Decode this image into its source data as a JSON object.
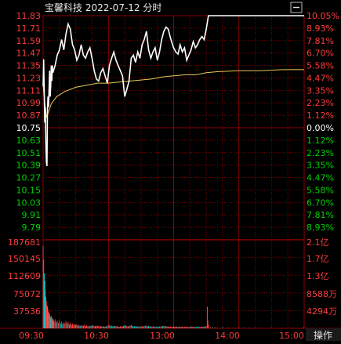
{
  "header": {
    "title": "宝馨科技  2022-07-12 分时"
  },
  "colors": {
    "background": "#000000",
    "grid": "#8b0000",
    "up": "#ff3b3b",
    "down": "#00d200",
    "neutral": "#ffffff",
    "price_line": "#ffffff",
    "avg_line": "#e8c75a",
    "volume_down": "#00d2d2"
  },
  "chart_data": {
    "type": "line",
    "prev_close": 10.75,
    "y_ticks": [
      "11.83",
      "11.71",
      "11.59",
      "11.47",
      "11.35",
      "11.23",
      "11.11",
      "10.99",
      "10.87",
      "10.75",
      "10.63",
      "10.51",
      "10.39",
      "10.27",
      "10.15",
      "10.03",
      "9.91",
      "9.79"
    ],
    "pct_ticks": [
      "10.05%",
      "8.93%",
      "7.81%",
      "6.70%",
      "5.58%",
      "4.47%",
      "3.35%",
      "2.23%",
      "1.12%",
      "0.00%",
      "1.12%",
      "2.23%",
      "3.35%",
      "4.47%",
      "5.58%",
      "6.70%",
      "7.81%",
      "8.93%"
    ],
    "volume_ticks": [
      "187681",
      "150145",
      "112609",
      "75072",
      "37536"
    ],
    "amount_ticks": [
      "2.1亿",
      "1.7亿",
      "1.3亿",
      "8588万",
      "4294万"
    ],
    "x_ticks": [
      "09:30",
      "10:30",
      "13:00",
      "14:00",
      "15:00"
    ],
    "ylim": [
      9.67,
      11.83
    ],
    "price_series": [
      [
        0,
        11.15
      ],
      [
        1,
        11.41
      ],
      [
        2,
        11.1
      ],
      [
        3,
        10.8
      ],
      [
        4,
        10.95
      ],
      [
        5,
        10.6
      ],
      [
        6,
        10.42
      ],
      [
        7,
        10.38
      ],
      [
        8,
        10.9
      ],
      [
        9,
        11.05
      ],
      [
        10,
        10.95
      ],
      [
        11,
        11.12
      ],
      [
        12,
        11.3
      ],
      [
        13,
        11.05
      ],
      [
        14,
        11.15
      ],
      [
        15,
        11.35
      ],
      [
        16,
        11.2
      ],
      [
        17,
        11.35
      ],
      [
        18,
        11.28
      ],
      [
        22,
        11.35
      ],
      [
        26,
        11.45
      ],
      [
        30,
        11.5
      ],
      [
        34,
        11.6
      ],
      [
        38,
        11.5
      ],
      [
        42,
        11.65
      ],
      [
        46,
        11.75
      ],
      [
        50,
        11.7
      ],
      [
        54,
        11.55
      ],
      [
        58,
        11.5
      ],
      [
        62,
        11.4
      ],
      [
        66,
        11.45
      ],
      [
        70,
        11.55
      ],
      [
        74,
        11.45
      ],
      [
        78,
        11.42
      ],
      [
        82,
        11.48
      ],
      [
        86,
        11.52
      ],
      [
        90,
        11.42
      ],
      [
        94,
        11.3
      ],
      [
        98,
        11.22
      ],
      [
        102,
        11.2
      ],
      [
        106,
        11.28
      ],
      [
        110,
        11.32
      ],
      [
        114,
        11.25
      ],
      [
        118,
        11.18
      ],
      [
        122,
        11.35
      ],
      [
        126,
        11.42
      ],
      [
        130,
        11.48
      ],
      [
        134,
        11.4
      ],
      [
        138,
        11.35
      ],
      [
        142,
        11.3
      ],
      [
        146,
        11.25
      ],
      [
        150,
        11.05
      ],
      [
        154,
        11.12
      ],
      [
        158,
        11.2
      ],
      [
        162,
        11.42
      ],
      [
        166,
        11.45
      ],
      [
        170,
        11.38
      ],
      [
        174,
        11.48
      ],
      [
        178,
        11.42
      ],
      [
        182,
        11.55
      ],
      [
        186,
        11.6
      ],
      [
        190,
        11.68
      ],
      [
        194,
        11.5
      ],
      [
        198,
        11.42
      ],
      [
        202,
        11.48
      ],
      [
        206,
        11.52
      ],
      [
        210,
        11.4
      ],
      [
        214,
        11.48
      ],
      [
        218,
        11.6
      ],
      [
        222,
        11.68
      ],
      [
        226,
        11.72
      ],
      [
        230,
        11.7
      ],
      [
        234,
        11.62
      ],
      [
        238,
        11.55
      ],
      [
        240,
        11.52
      ],
      [
        244,
        11.48
      ],
      [
        248,
        11.46
      ],
      [
        252,
        11.55
      ],
      [
        256,
        11.48
      ],
      [
        260,
        11.52
      ],
      [
        264,
        11.4
      ],
      [
        268,
        11.45
      ],
      [
        272,
        11.5
      ],
      [
        276,
        11.58
      ],
      [
        280,
        11.52
      ],
      [
        284,
        11.55
      ],
      [
        288,
        11.6
      ],
      [
        292,
        11.63
      ],
      [
        296,
        11.6
      ],
      [
        300,
        11.7
      ],
      [
        304,
        11.83
      ],
      [
        320,
        11.83
      ],
      [
        340,
        11.83
      ],
      [
        360,
        11.83
      ],
      [
        380,
        11.83
      ],
      [
        400,
        11.83
      ],
      [
        420,
        11.83
      ],
      [
        440,
        11.83
      ],
      [
        460,
        11.83
      ],
      [
        480,
        11.83
      ]
    ],
    "avg_series": [
      [
        0,
        11.15
      ],
      [
        3,
        11.0
      ],
      [
        6,
        10.85
      ],
      [
        10,
        10.9
      ],
      [
        15,
        10.98
      ],
      [
        25,
        11.05
      ],
      [
        40,
        11.1
      ],
      [
        60,
        11.14
      ],
      [
        80,
        11.16
      ],
      [
        100,
        11.18
      ],
      [
        120,
        11.18
      ],
      [
        140,
        11.19
      ],
      [
        160,
        11.2
      ],
      [
        180,
        11.21
      ],
      [
        200,
        11.22
      ],
      [
        220,
        11.24
      ],
      [
        240,
        11.25
      ],
      [
        260,
        11.26
      ],
      [
        280,
        11.26
      ],
      [
        300,
        11.28
      ],
      [
        320,
        11.29
      ],
      [
        360,
        11.3
      ],
      [
        400,
        11.3
      ],
      [
        440,
        11.31
      ],
      [
        480,
        11.31
      ]
    ],
    "volume_max": 225000,
    "volume_series": [
      [
        0,
        210000,
        "up"
      ],
      [
        1,
        175000,
        "up"
      ],
      [
        2,
        140000,
        "down"
      ],
      [
        3,
        120000,
        "down"
      ],
      [
        4,
        95000,
        "up"
      ],
      [
        5,
        80000,
        "down"
      ],
      [
        6,
        70000,
        "up"
      ],
      [
        7,
        60000,
        "up"
      ],
      [
        8,
        55000,
        "down"
      ],
      [
        9,
        48000,
        "up"
      ],
      [
        10,
        42000,
        "up"
      ],
      [
        11,
        38000,
        "down"
      ],
      [
        12,
        35000,
        "up"
      ],
      [
        13,
        30000,
        "up"
      ],
      [
        14,
        28000,
        "down"
      ],
      [
        15,
        32000,
        "up"
      ],
      [
        16,
        25000,
        "down"
      ],
      [
        17,
        22000,
        "up"
      ],
      [
        18,
        26000,
        "up"
      ],
      [
        19,
        20000,
        "down"
      ],
      [
        20,
        18000,
        "up"
      ],
      [
        22,
        23000,
        "up"
      ],
      [
        24,
        15000,
        "down"
      ],
      [
        26,
        19000,
        "up"
      ],
      [
        28,
        14000,
        "up"
      ],
      [
        30,
        21000,
        "up"
      ],
      [
        32,
        12000,
        "down"
      ],
      [
        34,
        17000,
        "up"
      ],
      [
        36,
        11000,
        "down"
      ],
      [
        38,
        15000,
        "up"
      ],
      [
        40,
        13000,
        "up"
      ],
      [
        42,
        18000,
        "up"
      ],
      [
        44,
        12000,
        "down"
      ],
      [
        46,
        16000,
        "up"
      ],
      [
        48,
        10000,
        "down"
      ],
      [
        50,
        14000,
        "up"
      ],
      [
        52,
        9000,
        "down"
      ],
      [
        54,
        12000,
        "up"
      ],
      [
        56,
        8000,
        "down"
      ],
      [
        58,
        11000,
        "up"
      ],
      [
        60,
        9000,
        "down"
      ],
      [
        62,
        10000,
        "up"
      ],
      [
        64,
        7000,
        "down"
      ],
      [
        66,
        9000,
        "up"
      ],
      [
        68,
        6000,
        "down"
      ],
      [
        70,
        8000,
        "up"
      ],
      [
        72,
        7000,
        "up"
      ],
      [
        74,
        6500,
        "down"
      ],
      [
        76,
        9000,
        "up"
      ],
      [
        78,
        6000,
        "down"
      ],
      [
        80,
        7500,
        "up"
      ],
      [
        82,
        5000,
        "down"
      ],
      [
        84,
        6500,
        "up"
      ],
      [
        86,
        5500,
        "up"
      ],
      [
        88,
        7000,
        "down"
      ],
      [
        90,
        6000,
        "up"
      ],
      [
        92,
        8000,
        "down"
      ],
      [
        94,
        5000,
        "up"
      ],
      [
        96,
        6000,
        "down"
      ],
      [
        98,
        7000,
        "up"
      ],
      [
        100,
        5500,
        "down"
      ],
      [
        102,
        6500,
        "up"
      ],
      [
        104,
        5000,
        "down"
      ],
      [
        106,
        6000,
        "up"
      ],
      [
        108,
        4500,
        "down"
      ],
      [
        110,
        5500,
        "up"
      ],
      [
        112,
        4000,
        "down"
      ],
      [
        114,
        5000,
        "up"
      ],
      [
        116,
        4500,
        "down"
      ],
      [
        118,
        6000,
        "up"
      ],
      [
        120,
        9000,
        "up"
      ],
      [
        122,
        8000,
        "up"
      ],
      [
        124,
        6000,
        "down"
      ],
      [
        126,
        7000,
        "up"
      ],
      [
        128,
        5000,
        "down"
      ],
      [
        130,
        6500,
        "up"
      ],
      [
        132,
        5500,
        "down"
      ],
      [
        134,
        6000,
        "up"
      ],
      [
        136,
        4500,
        "down"
      ],
      [
        138,
        5000,
        "up"
      ],
      [
        140,
        4000,
        "down"
      ],
      [
        142,
        5500,
        "up"
      ],
      [
        144,
        4500,
        "down"
      ],
      [
        146,
        5000,
        "up"
      ],
      [
        148,
        6000,
        "down"
      ],
      [
        150,
        8000,
        "down"
      ],
      [
        152,
        7000,
        "up"
      ],
      [
        154,
        6000,
        "up"
      ],
      [
        156,
        5000,
        "down"
      ],
      [
        158,
        6500,
        "up"
      ],
      [
        160,
        7000,
        "up"
      ],
      [
        162,
        9000,
        "up"
      ],
      [
        164,
        6000,
        "down"
      ],
      [
        166,
        5500,
        "up"
      ],
      [
        168,
        5000,
        "down"
      ],
      [
        170,
        6000,
        "up"
      ],
      [
        172,
        4500,
        "down"
      ],
      [
        174,
        5500,
        "up"
      ],
      [
        176,
        4000,
        "down"
      ],
      [
        178,
        5000,
        "up"
      ],
      [
        180,
        4500,
        "down"
      ],
      [
        182,
        6000,
        "up"
      ],
      [
        184,
        5000,
        "up"
      ],
      [
        186,
        5500,
        "down"
      ],
      [
        188,
        6500,
        "up"
      ],
      [
        190,
        7000,
        "up"
      ],
      [
        192,
        5000,
        "down"
      ],
      [
        194,
        6000,
        "down"
      ],
      [
        196,
        4500,
        "up"
      ],
      [
        198,
        5000,
        "down"
      ],
      [
        200,
        4000,
        "up"
      ],
      [
        202,
        5500,
        "up"
      ],
      [
        204,
        4000,
        "down"
      ],
      [
        206,
        5000,
        "up"
      ],
      [
        208,
        3500,
        "down"
      ],
      [
        210,
        4500,
        "up"
      ],
      [
        212,
        4000,
        "down"
      ],
      [
        214,
        5000,
        "up"
      ],
      [
        216,
        4500,
        "up"
      ],
      [
        218,
        6000,
        "up"
      ],
      [
        220,
        5500,
        "down"
      ],
      [
        222,
        6500,
        "up"
      ],
      [
        224,
        5000,
        "down"
      ],
      [
        226,
        6000,
        "up"
      ],
      [
        228,
        4500,
        "down"
      ],
      [
        230,
        5000,
        "up"
      ],
      [
        232,
        4000,
        "down"
      ],
      [
        234,
        4500,
        "up"
      ],
      [
        236,
        3500,
        "down"
      ],
      [
        238,
        4000,
        "up"
      ],
      [
        240,
        4500,
        "down"
      ],
      [
        242,
        5000,
        "up"
      ],
      [
        244,
        4000,
        "down"
      ],
      [
        246,
        4500,
        "up"
      ],
      [
        248,
        3500,
        "down"
      ],
      [
        250,
        4000,
        "up"
      ],
      [
        252,
        5000,
        "up"
      ],
      [
        254,
        3500,
        "down"
      ],
      [
        256,
        4500,
        "up"
      ],
      [
        258,
        3000,
        "down"
      ],
      [
        260,
        4000,
        "up"
      ],
      [
        262,
        3500,
        "down"
      ],
      [
        264,
        4500,
        "up"
      ],
      [
        266,
        3000,
        "down"
      ],
      [
        268,
        4000,
        "up"
      ],
      [
        270,
        3500,
        "up"
      ],
      [
        272,
        4500,
        "down"
      ],
      [
        274,
        5000,
        "up"
      ],
      [
        276,
        4000,
        "up"
      ],
      [
        278,
        3500,
        "down"
      ],
      [
        280,
        4500,
        "up"
      ],
      [
        282,
        3000,
        "down"
      ],
      [
        284,
        4000,
        "up"
      ],
      [
        286,
        3500,
        "down"
      ],
      [
        288,
        4500,
        "up"
      ],
      [
        290,
        4000,
        "up"
      ],
      [
        292,
        3500,
        "down"
      ],
      [
        294,
        5000,
        "up"
      ],
      [
        296,
        4000,
        "down"
      ],
      [
        298,
        4500,
        "up"
      ],
      [
        300,
        6000,
        "up"
      ],
      [
        302,
        55000,
        "up"
      ],
      [
        303,
        20000,
        "up"
      ],
      [
        304,
        8000,
        "up"
      ],
      [
        308,
        3000,
        "up"
      ],
      [
        312,
        2500,
        "down"
      ],
      [
        316,
        3000,
        "up"
      ],
      [
        320,
        2000,
        "up"
      ],
      [
        330,
        2500,
        "down"
      ],
      [
        340,
        2000,
        "up"
      ],
      [
        350,
        1500,
        "up"
      ],
      [
        360,
        2000,
        "up"
      ],
      [
        370,
        1500,
        "down"
      ],
      [
        380,
        1800,
        "up"
      ],
      [
        390,
        1500,
        "up"
      ],
      [
        400,
        1200,
        "up"
      ],
      [
        420,
        1500,
        "up"
      ],
      [
        440,
        1200,
        "up"
      ],
      [
        460,
        1500,
        "up"
      ],
      [
        479,
        2500,
        "up"
      ]
    ]
  },
  "footer": {
    "operate_label": "操作"
  }
}
